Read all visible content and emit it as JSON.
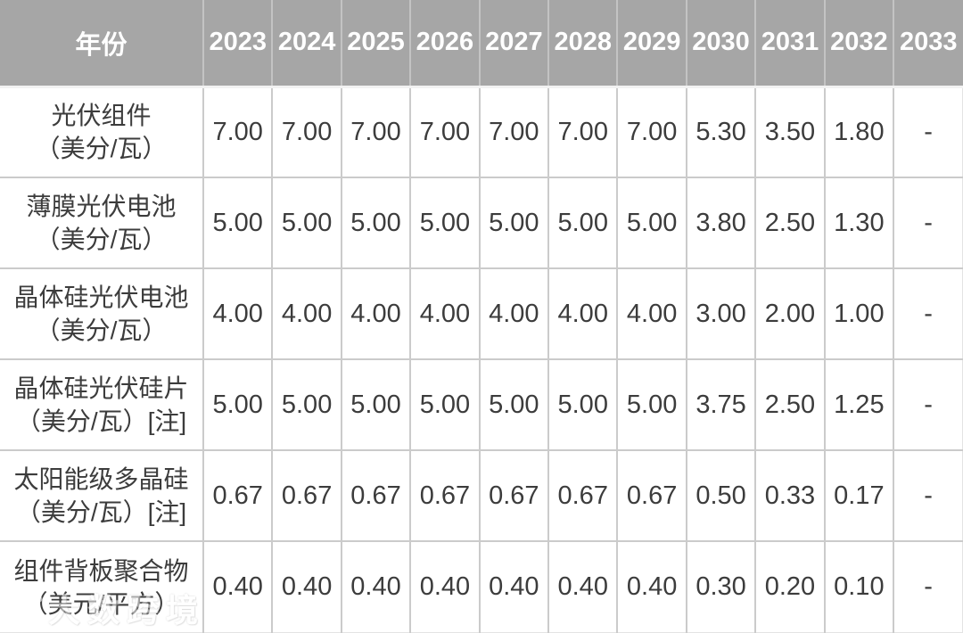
{
  "colors": {
    "header_bg": "#a6a6a6",
    "header_text": "#ffffff",
    "body_text": "#3c3c3c",
    "grid_line": "#cbcbcb"
  },
  "table": {
    "corner_label": "年份",
    "years": [
      "2023",
      "2024",
      "2025",
      "2026",
      "2027",
      "2028",
      "2029",
      "2030",
      "2031",
      "2032",
      "2033"
    ],
    "rows": [
      {
        "label_line1": "光伏组件",
        "label_line2": "（美分/瓦）",
        "values": [
          "7.00",
          "7.00",
          "7.00",
          "7.00",
          "7.00",
          "7.00",
          "7.00",
          "5.30",
          "3.50",
          "1.80",
          "-"
        ]
      },
      {
        "label_line1": "薄膜光伏电池",
        "label_line2": "（美分/瓦）",
        "values": [
          "5.00",
          "5.00",
          "5.00",
          "5.00",
          "5.00",
          "5.00",
          "5.00",
          "3.80",
          "2.50",
          "1.30",
          "-"
        ]
      },
      {
        "label_line1": "晶体硅光伏电池",
        "label_line2": "（美分/瓦）",
        "values": [
          "4.00",
          "4.00",
          "4.00",
          "4.00",
          "4.00",
          "4.00",
          "4.00",
          "3.00",
          "2.00",
          "1.00",
          "-"
        ]
      },
      {
        "label_line1": "晶体硅光伏硅片",
        "label_line2": "（美分/瓦）[注]",
        "values": [
          "5.00",
          "5.00",
          "5.00",
          "5.00",
          "5.00",
          "5.00",
          "5.00",
          "3.75",
          "2.50",
          "1.25",
          "-"
        ]
      },
      {
        "label_line1": "太阳能级多晶硅",
        "label_line2": "（美分/瓦）[注]",
        "values": [
          "0.67",
          "0.67",
          "0.67",
          "0.67",
          "0.67",
          "0.67",
          "0.67",
          "0.50",
          "0.33",
          "0.17",
          "-"
        ]
      },
      {
        "label_line1": "组件背板聚合物",
        "label_line2": "（美元/平方）",
        "values": [
          "0.40",
          "0.40",
          "0.40",
          "0.40",
          "0.40",
          "0.40",
          "0.40",
          "0.30",
          "0.20",
          "0.10",
          "-"
        ]
      }
    ]
  },
  "watermark": {
    "text": "大数跨境"
  },
  "chart_data": {
    "type": "table",
    "title": "",
    "categories": [
      "2023",
      "2024",
      "2025",
      "2026",
      "2027",
      "2028",
      "2029",
      "2030",
      "2031",
      "2032",
      "2033"
    ],
    "series": [
      {
        "name": "光伏组件（美分/瓦）",
        "values": [
          7.0,
          7.0,
          7.0,
          7.0,
          7.0,
          7.0,
          7.0,
          5.3,
          3.5,
          1.8,
          null
        ]
      },
      {
        "name": "薄膜光伏电池（美分/瓦）",
        "values": [
          5.0,
          5.0,
          5.0,
          5.0,
          5.0,
          5.0,
          5.0,
          3.8,
          2.5,
          1.3,
          null
        ]
      },
      {
        "name": "晶体硅光伏电池（美分/瓦）",
        "values": [
          4.0,
          4.0,
          4.0,
          4.0,
          4.0,
          4.0,
          4.0,
          3.0,
          2.0,
          1.0,
          null
        ]
      },
      {
        "name": "晶体硅光伏硅片（美分/瓦）[注]",
        "values": [
          5.0,
          5.0,
          5.0,
          5.0,
          5.0,
          5.0,
          5.0,
          3.75,
          2.5,
          1.25,
          null
        ]
      },
      {
        "name": "太阳能级多晶硅（美分/瓦）[注]",
        "values": [
          0.67,
          0.67,
          0.67,
          0.67,
          0.67,
          0.67,
          0.67,
          0.5,
          0.33,
          0.17,
          null
        ]
      },
      {
        "name": "组件背板聚合物（美元/平方）",
        "values": [
          0.4,
          0.4,
          0.4,
          0.4,
          0.4,
          0.4,
          0.4,
          0.3,
          0.2,
          0.1,
          null
        ]
      }
    ],
    "missing_value_marker": "-"
  }
}
